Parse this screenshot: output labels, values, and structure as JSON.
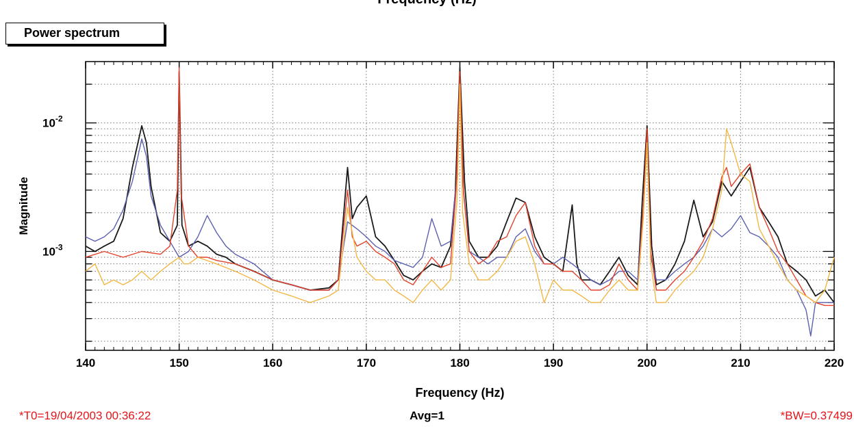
{
  "header": {
    "top_title_cut": "Frequency (Hz)",
    "panel_button": "Power spectrum"
  },
  "footer": {
    "t0": "*T0=19/04/2003 00:36:22",
    "avg": "Avg=1",
    "bw": "*BW=0.37499"
  },
  "colors": {
    "black": "#1a1a1a",
    "blue": "#5b5fb0",
    "red": "#e2412a",
    "orange": "#f2b744",
    "annotation_red": "#e4151a"
  },
  "chart_data": {
    "type": "line",
    "title": "",
    "xlabel": "Frequency (Hz)",
    "ylabel": "Magnitude",
    "xlim": [
      140,
      220
    ],
    "ylim": [
      0.00017,
      0.03
    ],
    "yscale": "log",
    "grid": true,
    "x_ticks": [
      140,
      150,
      160,
      170,
      180,
      190,
      200,
      210,
      220
    ],
    "y_tick_labels": [
      {
        "value": 0.01,
        "base": "10",
        "exp": "-2"
      },
      {
        "value": 0.001,
        "base": "10",
        "exp": "-3"
      }
    ],
    "series": [
      {
        "color": "#1a1a1a",
        "x": [
          140,
          141,
          142,
          143,
          144,
          145,
          146,
          146.5,
          147,
          148,
          149,
          149.8,
          150,
          150.3,
          151,
          152,
          153,
          154,
          155,
          156,
          158,
          160,
          162,
          164,
          166,
          167,
          168,
          168.5,
          169,
          170,
          171,
          172,
          173,
          174,
          175,
          176,
          177,
          178,
          179,
          179.5,
          180,
          180.5,
          181,
          182,
          183,
          184,
          185,
          186,
          187,
          188,
          189,
          190,
          191,
          192,
          192.5,
          193,
          194,
          195,
          196,
          197,
          198,
          199,
          199.5,
          200,
          200.5,
          201,
          202,
          203,
          204,
          205,
          206,
          207,
          208,
          209,
          210,
          211,
          212,
          213,
          214,
          215,
          216,
          217,
          218,
          219,
          220
        ],
        "y": [
          0.0011,
          0.001,
          0.0011,
          0.0012,
          0.0018,
          0.0045,
          0.0095,
          0.007,
          0.0032,
          0.0014,
          0.0012,
          0.0016,
          0.025,
          0.0016,
          0.0011,
          0.0012,
          0.0011,
          0.00095,
          0.0009,
          0.0008,
          0.0007,
          0.0006,
          0.00055,
          0.0005,
          0.00052,
          0.0006,
          0.0045,
          0.0018,
          0.0022,
          0.0027,
          0.0013,
          0.0011,
          0.00085,
          0.00065,
          0.0006,
          0.0007,
          0.0008,
          0.00075,
          0.0011,
          0.0028,
          0.027,
          0.0035,
          0.0012,
          0.0009,
          0.0009,
          0.0011,
          0.0017,
          0.0026,
          0.0024,
          0.0013,
          0.0009,
          0.0008,
          0.0007,
          0.0023,
          0.0008,
          0.0006,
          0.0006,
          0.00055,
          0.0007,
          0.0009,
          0.00065,
          0.00055,
          0.0025,
          0.0095,
          0.0011,
          0.00055,
          0.0006,
          0.0008,
          0.0012,
          0.0025,
          0.0013,
          0.0017,
          0.0035,
          0.0027,
          0.0035,
          0.0045,
          0.0022,
          0.0017,
          0.0013,
          0.0008,
          0.0007,
          0.0006,
          0.00045,
          0.0005,
          0.0004
        ]
      },
      {
        "color": "#5b5fb0",
        "x": [
          140,
          141,
          142,
          143,
          144,
          145,
          146,
          146.5,
          147,
          148,
          149,
          150,
          151,
          152,
          153,
          154,
          155,
          156,
          158,
          160,
          162,
          164,
          166,
          167,
          168,
          169,
          170,
          171,
          172,
          173,
          174,
          175,
          176,
          177,
          178,
          179,
          179.7,
          180,
          180.3,
          181,
          182,
          183,
          184,
          185,
          186,
          187,
          188,
          189,
          190,
          191,
          192,
          193,
          194,
          195,
          196,
          197,
          198,
          199,
          199.6,
          200,
          200.4,
          201,
          202,
          203,
          204,
          205,
          206,
          207,
          208,
          209,
          210,
          211,
          212,
          213,
          214,
          215,
          216,
          217,
          217.5,
          218,
          219,
          220
        ],
        "y": [
          0.0013,
          0.0012,
          0.0013,
          0.0015,
          0.0021,
          0.0035,
          0.0075,
          0.0055,
          0.0027,
          0.0016,
          0.0012,
          0.0009,
          0.001,
          0.0013,
          0.0019,
          0.0014,
          0.0011,
          0.00095,
          0.0008,
          0.0006,
          0.00055,
          0.0005,
          0.0005,
          0.0006,
          0.0017,
          0.0015,
          0.0013,
          0.0011,
          0.001,
          0.00085,
          0.0008,
          0.00075,
          0.0009,
          0.0018,
          0.0011,
          0.0012,
          0.004,
          0.024,
          0.0035,
          0.001,
          0.0009,
          0.0008,
          0.0009,
          0.0009,
          0.0013,
          0.0015,
          0.001,
          0.0008,
          0.0008,
          0.0009,
          0.0008,
          0.0007,
          0.0006,
          0.00055,
          0.0006,
          0.0007,
          0.0007,
          0.0006,
          0.0022,
          0.0085,
          0.0009,
          0.0006,
          0.0006,
          0.0007,
          0.0008,
          0.0009,
          0.0011,
          0.0015,
          0.0013,
          0.0015,
          0.0019,
          0.0014,
          0.0013,
          0.0011,
          0.0009,
          0.0006,
          0.0005,
          0.00035,
          0.00022,
          0.0004,
          0.0004,
          0.0004
        ]
      },
      {
        "color": "#e2412a",
        "x": [
          140,
          142,
          144,
          146,
          148,
          149,
          149.8,
          150,
          150.2,
          151,
          152,
          153,
          154,
          156,
          158,
          160,
          162,
          164,
          166,
          167,
          168,
          168.5,
          169,
          170,
          171,
          172,
          173,
          174,
          175,
          176,
          177,
          178,
          179,
          179.6,
          180,
          180.4,
          181,
          182,
          183,
          184,
          185,
          186,
          187,
          188,
          189,
          190,
          191,
          192,
          193,
          194,
          195,
          196,
          197,
          198,
          199,
          199.6,
          200,
          200.4,
          201,
          202,
          203,
          204,
          205,
          206,
          207,
          208,
          208.5,
          209,
          210,
          211,
          212,
          213,
          214,
          215,
          216,
          217,
          218,
          219,
          220
        ],
        "y": [
          0.0009,
          0.001,
          0.0009,
          0.001,
          0.00095,
          0.0011,
          0.003,
          0.027,
          0.0028,
          0.0011,
          0.0009,
          0.0009,
          0.00085,
          0.0008,
          0.0007,
          0.0006,
          0.00055,
          0.0005,
          0.0005,
          0.0006,
          0.003,
          0.0013,
          0.0011,
          0.0012,
          0.001,
          0.0009,
          0.0008,
          0.0006,
          0.00055,
          0.0007,
          0.0009,
          0.00075,
          0.0008,
          0.003,
          0.025,
          0.0028,
          0.001,
          0.0008,
          0.0009,
          0.0012,
          0.0013,
          0.0019,
          0.0024,
          0.0011,
          0.0008,
          0.0008,
          0.0007,
          0.0007,
          0.0006,
          0.0005,
          0.0005,
          0.00055,
          0.0008,
          0.0006,
          0.0005,
          0.0022,
          0.009,
          0.001,
          0.0005,
          0.0005,
          0.0006,
          0.0007,
          0.0009,
          0.0012,
          0.0018,
          0.0038,
          0.0045,
          0.0032,
          0.004,
          0.0048,
          0.0022,
          0.0015,
          0.001,
          0.0008,
          0.0006,
          0.00045,
          0.0004,
          0.00038,
          0.00038
        ]
      },
      {
        "color": "#f2b744",
        "x": [
          140,
          141,
          142,
          143,
          144,
          145,
          146,
          147,
          148,
          149,
          150,
          150.5,
          151,
          152,
          154,
          156,
          158,
          160,
          162,
          164,
          166,
          167,
          168,
          169,
          170,
          171,
          172,
          173,
          174,
          175,
          176,
          177,
          178,
          179,
          179.7,
          180,
          180.3,
          181,
          182,
          183,
          184,
          185,
          186,
          187,
          188,
          189,
          190,
          191,
          192,
          193,
          194,
          195,
          196,
          197,
          198,
          199,
          199.6,
          200,
          200.4,
          201,
          202,
          203,
          204,
          205,
          206,
          207,
          208,
          208.5,
          209,
          210,
          211,
          212,
          213,
          214,
          215,
          216,
          217,
          218,
          219,
          220
        ],
        "y": [
          0.0007,
          0.0008,
          0.00055,
          0.0006,
          0.00055,
          0.0006,
          0.0007,
          0.0006,
          0.0007,
          0.0008,
          0.0009,
          0.0008,
          0.0008,
          0.0009,
          0.0008,
          0.0007,
          0.0006,
          0.0005,
          0.00045,
          0.0004,
          0.00045,
          0.0005,
          0.0022,
          0.0009,
          0.0007,
          0.0006,
          0.0006,
          0.0005,
          0.00045,
          0.0004,
          0.0005,
          0.0006,
          0.0005,
          0.0006,
          0.0025,
          0.02,
          0.002,
          0.0008,
          0.0006,
          0.0006,
          0.0007,
          0.0009,
          0.0012,
          0.0013,
          0.0008,
          0.0004,
          0.0006,
          0.0005,
          0.0005,
          0.00045,
          0.0004,
          0.0004,
          0.0005,
          0.0006,
          0.0005,
          0.0005,
          0.0018,
          0.007,
          0.0008,
          0.0004,
          0.0004,
          0.0005,
          0.0006,
          0.0007,
          0.0009,
          0.0015,
          0.003,
          0.009,
          0.007,
          0.004,
          0.0035,
          0.0015,
          0.0011,
          0.0008,
          0.0006,
          0.0005,
          0.00045,
          0.0004,
          0.0005,
          0.0009
        ]
      }
    ]
  }
}
